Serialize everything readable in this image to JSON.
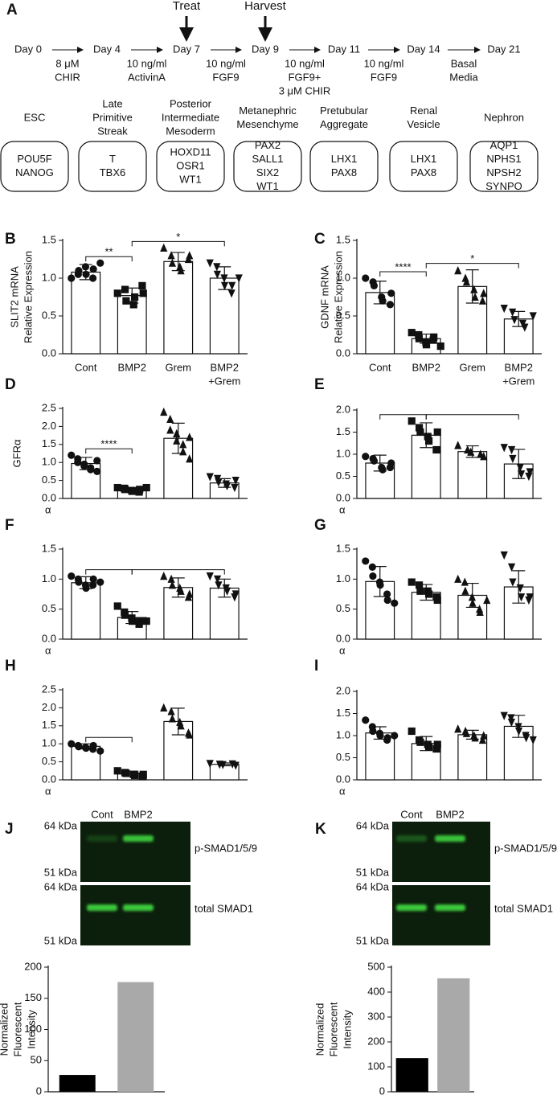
{
  "panel_a": {
    "letter": "A",
    "events": [
      "Treat",
      "Harvest"
    ],
    "days": [
      "Day 0",
      "Day 4",
      "Day 7",
      "Day 9",
      "Day 11",
      "Day 14",
      "Day 21"
    ],
    "steps": [
      [
        "8 μM",
        "CHIR"
      ],
      [
        "10 ng/ml",
        "ActivinA"
      ],
      [
        "10 ng/ml",
        "FGF9"
      ],
      [
        "10 ng/ml",
        "FGF9+",
        "3 μM CHIR"
      ],
      [
        "10 ng/ml",
        "FGF9"
      ],
      [
        "Basal",
        "Media"
      ]
    ],
    "stages": [
      {
        "name": [
          "ESC"
        ],
        "genes": [
          "POU5F",
          "NANOG"
        ]
      },
      {
        "name": [
          "Late",
          "Primitive",
          "Streak"
        ],
        "genes": [
          "T",
          "TBX6"
        ]
      },
      {
        "name": [
          "Posterior",
          "Intermediate",
          "Mesoderm"
        ],
        "genes": [
          "HOXD11",
          "OSR1",
          "WT1"
        ]
      },
      {
        "name": [
          "Metanephric",
          "Mesenchyme"
        ],
        "genes": [
          "PAX2",
          "SALL1",
          "SIX2",
          "WT1"
        ]
      },
      {
        "name": [
          "Pretubular",
          "Aggregate"
        ],
        "genes": [
          "LHX1",
          "PAX8"
        ]
      },
      {
        "name": [
          "Renal",
          "Vesicle"
        ],
        "genes": [
          "LHX1",
          "PAX8"
        ]
      },
      {
        "name": [
          "Nephron"
        ],
        "genes": [
          "AQP1",
          "NPHS1",
          "NPSH2",
          "SYNPO"
        ]
      }
    ]
  },
  "chart_data": [
    {
      "type": "bar",
      "panel": "B",
      "ylabel": [
        "SLIT2 mRNA",
        "Relative Expression"
      ],
      "categories": [
        [
          "Cont"
        ],
        [
          "BMP2"
        ],
        [
          "Grem"
        ],
        [
          "BMP2",
          "+Grem"
        ]
      ],
      "markers": [
        "circle",
        "square",
        "triangle",
        "triangle-down"
      ],
      "values": [
        1.08,
        0.77,
        1.22,
        1.0
      ],
      "errors": [
        0.1,
        0.1,
        0.12,
        0.15
      ],
      "points": [
        [
          1.0,
          1.05,
          1.1,
          1.15,
          1.05,
          1.0,
          1.12,
          1.2
        ],
        [
          0.8,
          0.85,
          0.7,
          0.65,
          0.75,
          0.9,
          0.8
        ],
        [
          1.4,
          1.3,
          1.2,
          1.15,
          1.1,
          1.25,
          1.3
        ],
        [
          1.2,
          1.15,
          1.05,
          1.0,
          0.9,
          0.8,
          0.9,
          1.0
        ]
      ],
      "brackets": [
        {
          "between": [
            0,
            1
          ],
          "label": "**"
        },
        {
          "between": [
            1,
            3
          ],
          "label": "*"
        }
      ],
      "ylim": [
        0,
        1.5
      ],
      "yticks": [
        {
          "value": 0,
          "label": "0.0"
        },
        0.5,
        {
          "value": 1,
          "label": "1.0"
        },
        1.5
      ]
    },
    {
      "type": "bar",
      "panel": "C",
      "ylabel": [
        "GDNF mRNA",
        "Relative Expression"
      ],
      "categories": [
        [
          "Cont"
        ],
        [
          "BMP2"
        ],
        [
          "Grem"
        ],
        [
          "BMP2",
          "+Grem"
        ]
      ],
      "markers": [
        "circle",
        "square",
        "triangle",
        "triangle-down"
      ],
      "values": [
        0.81,
        0.2,
        0.89,
        0.46
      ],
      "errors": [
        0.15,
        0.06,
        0.22,
        0.1
      ],
      "points": [
        [
          1.0,
          0.95,
          0.9,
          0.75,
          0.7,
          0.65,
          0.8
        ],
        [
          0.28,
          0.25,
          0.2,
          0.15,
          0.12,
          0.18,
          0.22,
          0.1
        ],
        [
          1.1,
          1.0,
          0.95,
          0.85,
          0.75,
          0.7,
          0.8
        ],
        [
          0.6,
          0.55,
          0.45,
          0.4,
          0.35,
          0.5
        ]
      ],
      "brackets": [
        {
          "between": [
            0,
            1
          ],
          "label": "****"
        },
        {
          "between": [
            1,
            3
          ],
          "label": "*"
        }
      ],
      "ylim": [
        0,
        1.5
      ],
      "yticks": [
        {
          "value": 0,
          "label": "0.0"
        },
        0.5,
        {
          "value": 1,
          "label": "1.0"
        },
        1.5
      ]
    },
    {
      "type": "bar",
      "panel": "D",
      "ylabel": [
        "GFRα"
      ],
      "footnote": "α",
      "categories": [
        null,
        null,
        null,
        null
      ],
      "markers": [
        "circle",
        "square",
        "triangle",
        "triangle-down"
      ],
      "values": [
        0.97,
        0.25,
        1.67,
        0.43
      ],
      "errors": [
        0.17,
        0.05,
        0.42,
        0.12
      ],
      "points": [
        [
          1.2,
          1.1,
          1.0,
          0.95,
          0.9,
          0.85,
          0.8,
          0.75,
          1.05
        ],
        [
          0.3,
          0.28,
          0.25,
          0.22,
          0.2,
          0.18,
          0.25,
          0.3
        ],
        [
          2.4,
          2.2,
          1.9,
          1.8,
          1.6,
          1.5,
          1.3,
          1.1,
          1.7
        ],
        [
          0.6,
          0.55,
          0.45,
          0.4,
          0.35,
          0.3,
          0.5
        ]
      ],
      "brackets": [
        {
          "between": [
            0,
            1
          ],
          "label": "****"
        }
      ],
      "ylim": [
        0,
        2.5
      ],
      "yticks": [
        {
          "value": 0,
          "label": "0.0"
        },
        0.5,
        {
          "value": 1,
          "label": "1.0"
        },
        1.5,
        {
          "value": 2,
          "label": "2.0"
        },
        2.5
      ]
    },
    {
      "type": "bar",
      "panel": "E",
      "footnote": "α",
      "categories": [
        null,
        null,
        null,
        null
      ],
      "markers": [
        "circle",
        "square",
        "triangle",
        "triangle-down"
      ],
      "values": [
        0.8,
        1.43,
        1.06,
        0.78
      ],
      "errors": [
        0.18,
        0.28,
        0.13,
        0.33
      ],
      "points": [
        [
          0.95,
          0.9,
          0.85,
          0.7,
          0.65,
          0.7,
          0.8
        ],
        [
          1.75,
          1.6,
          1.5,
          1.4,
          1.3,
          1.1,
          1.5
        ],
        [
          1.2,
          1.1,
          1.05,
          1.0,
          0.95
        ],
        [
          1.15,
          1.1,
          0.9,
          0.7,
          0.55,
          0.5,
          0.6
        ]
      ],
      "brackets": [
        {
          "between": [
            0,
            1
          ]
        },
        {
          "between": [
            1,
            3
          ]
        }
      ],
      "ylim": [
        0,
        2
      ],
      "yticks": [
        {
          "value": 0,
          "label": "0.0"
        },
        0.5,
        {
          "value": 1,
          "label": "1.0"
        },
        1.5,
        {
          "value": 2,
          "label": "2.0"
        }
      ]
    },
    {
      "type": "bar",
      "panel": "F",
      "footnote": "α",
      "categories": [
        null,
        null,
        null,
        null
      ],
      "markers": [
        "circle",
        "square",
        "triangle",
        "triangle-down"
      ],
      "values": [
        0.94,
        0.36,
        0.86,
        0.85
      ],
      "errors": [
        0.1,
        0.1,
        0.16,
        0.15
      ],
      "points": [
        [
          1.05,
          1.0,
          0.95,
          0.9,
          0.85,
          0.9,
          1.0,
          0.95
        ],
        [
          0.55,
          0.45,
          0.4,
          0.35,
          0.3,
          0.25,
          0.3,
          0.3
        ],
        [
          1.05,
          1.0,
          0.9,
          0.85,
          0.8,
          0.7,
          0.75
        ],
        [
          1.05,
          1.0,
          0.9,
          0.85,
          0.8,
          0.7,
          0.75
        ]
      ],
      "brackets": [
        {
          "between": [
            0,
            1
          ]
        },
        {
          "between": [
            1,
            3
          ]
        }
      ],
      "ylim": [
        0,
        1.5
      ],
      "yticks": [
        {
          "value": 0,
          "label": "0.0"
        },
        0.5,
        {
          "value": 1,
          "label": "1.0"
        },
        1.5
      ]
    },
    {
      "type": "bar",
      "panel": "G",
      "footnote": "α",
      "categories": [
        null,
        null,
        null,
        null
      ],
      "markers": [
        "circle",
        "square",
        "triangle",
        "triangle-down"
      ],
      "values": [
        0.96,
        0.78,
        0.73,
        0.87
      ],
      "errors": [
        0.25,
        0.13,
        0.2,
        0.27
      ],
      "points": [
        [
          1.3,
          1.2,
          1.05,
          0.95,
          0.9,
          0.75,
          0.65,
          0.6
        ],
        [
          0.95,
          0.9,
          0.8,
          0.8,
          0.75,
          0.7,
          0.65
        ],
        [
          1.0,
          0.95,
          0.8,
          0.7,
          0.6,
          0.5,
          0.45,
          0.65
        ],
        [
          1.4,
          1.2,
          0.95,
          0.85,
          0.7,
          0.65,
          0.7
        ]
      ],
      "ylim": [
        0,
        1.5
      ],
      "yticks": [
        {
          "value": 0,
          "label": "0.0"
        },
        0.5,
        {
          "value": 1,
          "label": "1.0"
        },
        1.5
      ]
    },
    {
      "type": "bar",
      "panel": "H",
      "footnote": "α",
      "categories": [
        null,
        null,
        null,
        null
      ],
      "markers": [
        "circle",
        "square",
        "triangle",
        "triangle-down"
      ],
      "values": [
        0.93,
        0.17,
        1.62,
        0.43
      ],
      "errors": [
        0.07,
        0.07,
        0.37,
        0.04
      ],
      "points": [
        [
          1.0,
          0.95,
          0.92,
          0.9,
          0.88,
          0.85,
          0.95,
          0.8
        ],
        [
          0.25,
          0.2,
          0.18,
          0.15,
          0.12,
          0.1,
          0.15
        ],
        [
          2.0,
          1.9,
          1.7,
          1.6,
          1.5,
          1.3,
          1.25
        ],
        [
          0.45,
          0.43,
          0.42,
          0.44,
          0.4
        ]
      ],
      "brackets": [
        {
          "between": [
            0,
            1
          ]
        }
      ],
      "ylim": [
        0,
        2.5
      ],
      "yticks": [
        {
          "value": 0,
          "label": "0.0"
        },
        0.5,
        {
          "value": 1,
          "label": "1.0"
        },
        1.5,
        {
          "value": 2,
          "label": "2.0"
        },
        2.5
      ]
    },
    {
      "type": "bar",
      "panel": "I",
      "footnote": "α",
      "categories": [
        null,
        null,
        null,
        null
      ],
      "markers": [
        "circle",
        "square",
        "triangle",
        "triangle-down"
      ],
      "values": [
        1.06,
        0.82,
        1.02,
        1.21
      ],
      "errors": [
        0.14,
        0.16,
        0.1,
        0.25
      ],
      "points": [
        [
          1.35,
          1.2,
          1.1,
          1.05,
          1.0,
          0.9,
          0.95,
          1.0
        ],
        [
          1.1,
          0.9,
          0.85,
          0.8,
          0.75,
          0.7,
          0.8
        ],
        [
          1.15,
          1.1,
          1.05,
          1.0,
          0.95,
          0.9,
          1.0
        ],
        [
          1.45,
          1.4,
          1.3,
          1.2,
          1.1,
          1.0,
          0.95,
          0.9
        ]
      ],
      "ylim": [
        0,
        2
      ],
      "yticks": [
        {
          "value": 0,
          "label": "0.0"
        },
        0.5,
        {
          "value": 1,
          "label": "1.0"
        },
        1.5,
        {
          "value": 2,
          "label": "2.0"
        }
      ]
    },
    {
      "type": "bar",
      "ylabel": [
        "Normalized",
        "Fluorescent",
        "Intensity"
      ],
      "categories": [
        null,
        null
      ],
      "colors": [
        "#000000",
        "#a9a9a9"
      ],
      "values": [
        27,
        176
      ],
      "ylim": [
        0,
        200
      ],
      "yticks": [
        0,
        50,
        100,
        150,
        200
      ]
    },
    {
      "type": "bar",
      "ylabel": [
        "Normalized",
        "Fluorescent",
        "Intensity"
      ],
      "categories": [
        null,
        null
      ],
      "colors": [
        "#000000",
        "#a9a9a9"
      ],
      "values": [
        135,
        455
      ],
      "ylim": [
        0,
        500
      ],
      "yticks": [
        0,
        100,
        200,
        300,
        400,
        500
      ]
    }
  ],
  "blots": [
    {
      "letter": "J",
      "lanes": [
        "Cont",
        "BMP2"
      ],
      "sizes": [
        "64 kDa",
        "51 kDa",
        "64 kDa",
        "51 kDa"
      ],
      "bands": [
        "p-SMAD1/5/9",
        "total SMAD1"
      ]
    },
    {
      "letter": "K",
      "lanes": [
        "Cont",
        "BMP2"
      ],
      "sizes": [
        "64 kDa",
        "51 kDa",
        "64 kDa",
        "51 kDa"
      ],
      "bands": [
        "p-SMAD1/5/9",
        "total SMAD1"
      ]
    }
  ]
}
